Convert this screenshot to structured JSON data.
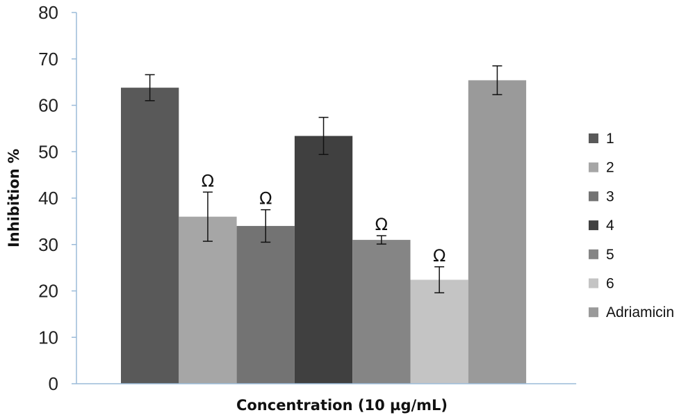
{
  "chart_data": {
    "type": "bar",
    "title": "",
    "xlabel": "Concentration (10 µg/mL)",
    "ylabel": "Inhibition %",
    "ylim": [
      0,
      80
    ],
    "yticks": [
      0,
      10,
      20,
      30,
      40,
      50,
      60,
      70,
      80
    ],
    "grid": false,
    "legend_position": "right",
    "series": [
      {
        "name": "1",
        "value": 63.8,
        "error": 2.8,
        "color": "#595959",
        "annotation": ""
      },
      {
        "name": "2",
        "value": 36.0,
        "error": 5.3,
        "color": "#a6a6a6",
        "annotation": "Ω"
      },
      {
        "name": "3",
        "value": 34.0,
        "error": 3.5,
        "color": "#737373",
        "annotation": "Ω"
      },
      {
        "name": "4",
        "value": 53.4,
        "error": 4.0,
        "color": "#404040",
        "annotation": ""
      },
      {
        "name": "5",
        "value": 31.0,
        "error": 0.9,
        "color": "#858585",
        "annotation": "Ω"
      },
      {
        "name": "6",
        "value": 22.4,
        "error": 2.8,
        "color": "#c4c4c4",
        "annotation": "Ω"
      },
      {
        "name": "Adriamicin",
        "value": 65.4,
        "error": 3.1,
        "color": "#9a9a9a",
        "annotation": ""
      }
    ],
    "colors": {
      "axis": "#9bbbd9"
    }
  }
}
